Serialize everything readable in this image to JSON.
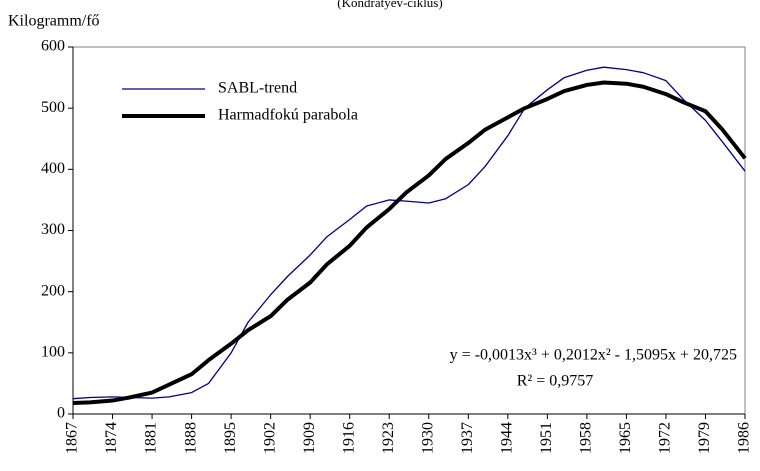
{
  "chart_data": {
    "type": "line",
    "subtitle": "(Kondratyev-ciklus)",
    "y_label": "Kilogramm/fő",
    "x": [
      1867,
      1870,
      1874,
      1877,
      1881,
      1884,
      1888,
      1891,
      1895,
      1898,
      1902,
      1905,
      1909,
      1912,
      1916,
      1919,
      1923,
      1926,
      1930,
      1933,
      1937,
      1940,
      1944,
      1947,
      1951,
      1954,
      1958,
      1961,
      1965,
      1968,
      1972,
      1975,
      1979,
      1982,
      1986
    ],
    "series": [
      {
        "name": "SABL-trend",
        "color": "#00008b",
        "width": 1.3,
        "values": [
          25,
          27,
          28,
          27,
          26,
          28,
          35,
          50,
          100,
          150,
          195,
          225,
          260,
          290,
          318,
          340,
          350,
          348,
          345,
          352,
          375,
          405,
          455,
          500,
          530,
          550,
          562,
          567,
          563,
          558,
          545,
          515,
          480,
          445,
          397
        ]
      },
      {
        "name": "Harmadfokú parabola",
        "color": "#000000",
        "width": 4,
        "values": [
          18,
          19,
          22,
          27,
          35,
          48,
          65,
          88,
          115,
          137,
          160,
          187,
          215,
          245,
          275,
          305,
          335,
          362,
          390,
          417,
          443,
          465,
          485,
          500,
          515,
          528,
          538,
          542,
          540,
          535,
          523,
          510,
          495,
          465,
          418
        ]
      }
    ],
    "xlim": [
      1867,
      1986
    ],
    "xticks": [
      1867,
      1874,
      1881,
      1888,
      1895,
      1902,
      1909,
      1916,
      1923,
      1930,
      1937,
      1944,
      1951,
      1958,
      1965,
      1972,
      1979,
      1986
    ],
    "ylim": [
      0,
      600
    ],
    "yticks": [
      0,
      100,
      200,
      300,
      400,
      500,
      600
    ],
    "annotations": [
      "y = -0,0013x³ + 0,2012x² - 1,5095x + 20,725",
      "R² = 0,9757"
    ]
  }
}
